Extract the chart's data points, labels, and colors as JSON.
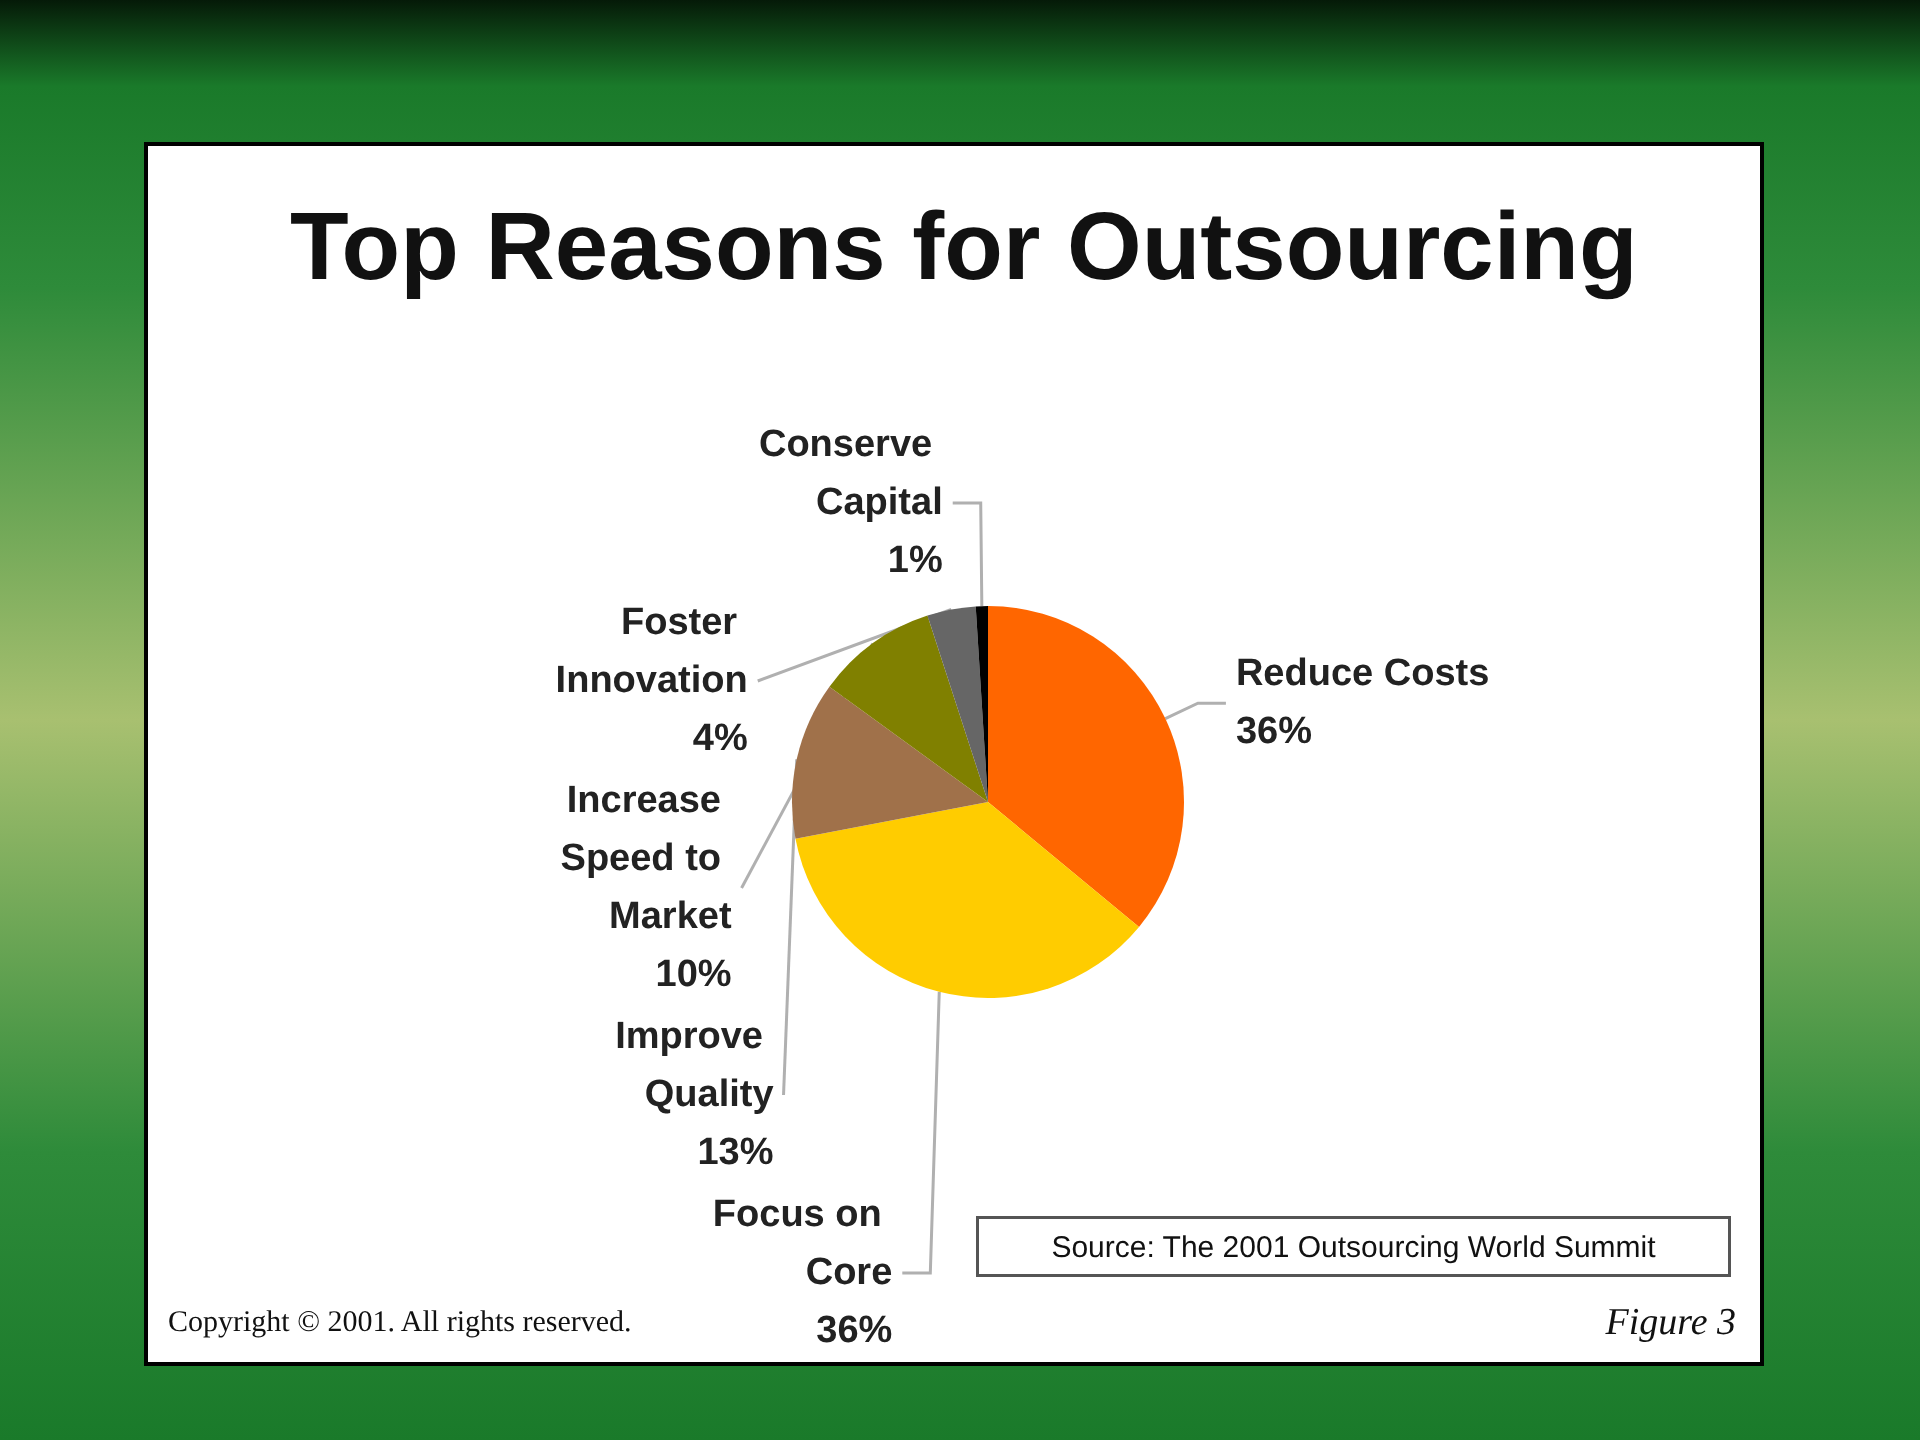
{
  "chart_data": {
    "type": "pie",
    "title": "Top Reasons for Outsourcing",
    "categories": [
      "Reduce Costs",
      "Focus on Core",
      "Improve Quality",
      "Increase Speed to Market",
      "Foster Innovation",
      "Conserve Capital"
    ],
    "values": [
      36,
      36,
      13,
      10,
      4,
      1
    ],
    "value_labels": [
      "36%",
      "36%",
      "13%",
      "10%",
      "4%",
      "1%"
    ],
    "colors": [
      "#ff6600",
      "#ffcc00",
      "#a0714a",
      "#808000",
      "#666666",
      "#000000"
    ],
    "annotations": [
      "Source: The 2001 Outsourcing World Summit",
      "Copyright © 2001. All rights reserved.",
      "Figure 3"
    ]
  }
}
